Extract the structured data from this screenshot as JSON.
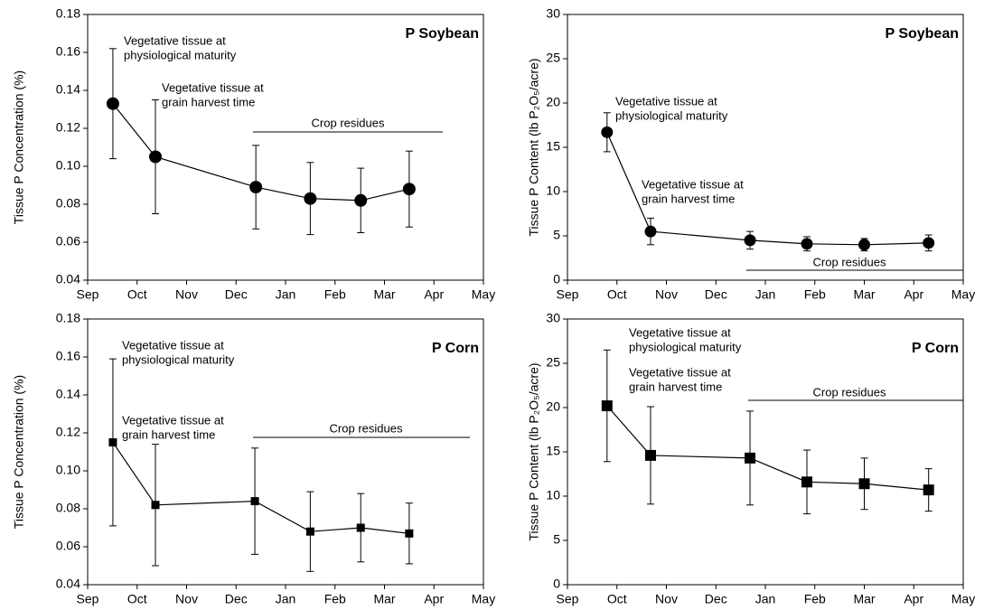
{
  "chart_data": [
    {
      "type": "line",
      "title": "P Soybean",
      "y_label": "Tissue P Concentration (%)",
      "marker": "circle",
      "color": "#000000",
      "x": [
        0.51,
        1.37,
        3.4,
        4.5,
        5.52,
        6.5
      ],
      "values": [
        0.133,
        0.105,
        0.089,
        0.083,
        0.082,
        0.088
      ],
      "errors": [
        0.029,
        0.03,
        0.022,
        0.019,
        0.017,
        0.02
      ],
      "xlim": [
        0,
        8
      ],
      "xticks": [
        {
          "value": 0,
          "label": "Sep"
        },
        {
          "value": 1,
          "label": "Oct"
        },
        {
          "value": 2,
          "label": "Nov"
        },
        {
          "value": 3,
          "label": "Dec"
        },
        {
          "value": 4,
          "label": "Jan"
        },
        {
          "value": 5,
          "label": "Feb"
        },
        {
          "value": 6,
          "label": "Mar"
        },
        {
          "value": 7,
          "label": "Apr"
        },
        {
          "value": 8,
          "label": "May"
        }
      ],
      "ylim": [
        0.04,
        0.18
      ],
      "yticks": [
        0.04,
        0.06,
        0.08,
        {
          "value": 0.1,
          "label": "0.10"
        },
        0.12,
        0.14,
        0.16,
        0.18
      ],
      "annotations": [
        [
          "Vegetative tissue at",
          "physiological maturity"
        ],
        [
          "Vegetative tissue at",
          "grain harvest time"
        ],
        [
          "Crop residues"
        ]
      ]
    },
    {
      "type": "line",
      "title": "P Soybean",
      "y_label": "Tissue P Content (lb P₂O₅/acre)",
      "marker": "circle",
      "color": "#000000",
      "x": [
        0.8,
        1.68,
        3.69,
        4.84,
        6.0,
        7.3
      ],
      "values": [
        16.7,
        5.5,
        4.5,
        4.1,
        4.0,
        4.2
      ],
      "errors": [
        2.2,
        1.5,
        1.0,
        0.8,
        0.7,
        0.9
      ],
      "xlim": [
        0,
        8
      ],
      "xticks": [
        {
          "value": 0,
          "label": "Sep"
        },
        {
          "value": 1,
          "label": "Oct"
        },
        {
          "value": 2,
          "label": "Nov"
        },
        {
          "value": 3,
          "label": "Dec"
        },
        {
          "value": 4,
          "label": "Jan"
        },
        {
          "value": 5,
          "label": "Feb"
        },
        {
          "value": 6,
          "label": "Mar"
        },
        {
          "value": 7,
          "label": "Apr"
        },
        {
          "value": 8,
          "label": "May"
        }
      ],
      "ylim": [
        0,
        30
      ],
      "yticks": [
        0,
        5,
        10,
        15,
        20,
        25,
        30
      ],
      "annotations": [
        [
          "Vegetative tissue at",
          "physiological maturity"
        ],
        [
          "Vegetative tissue at",
          "grain harvest time"
        ],
        [
          "Crop residues"
        ]
      ]
    },
    {
      "type": "line",
      "title": "P Corn",
      "y_label": "Tissue P Concentration (%)",
      "marker": "square",
      "color": "#000000",
      "x": [
        0.51,
        1.37,
        3.38,
        4.5,
        5.52,
        6.5
      ],
      "values": [
        0.115,
        0.082,
        0.084,
        0.068,
        0.07,
        0.067
      ],
      "errors": [
        0.044,
        0.032,
        0.028,
        0.021,
        0.018,
        0.016
      ],
      "xlim": [
        0,
        8
      ],
      "xticks": [
        {
          "value": 0,
          "label": "Sep"
        },
        {
          "value": 1,
          "label": "Oct"
        },
        {
          "value": 2,
          "label": "Nov"
        },
        {
          "value": 3,
          "label": "Dec"
        },
        {
          "value": 4,
          "label": "Jan"
        },
        {
          "value": 5,
          "label": "Feb"
        },
        {
          "value": 6,
          "label": "Mar"
        },
        {
          "value": 7,
          "label": "Apr"
        },
        {
          "value": 8,
          "label": "May"
        }
      ],
      "ylim": [
        0.04,
        0.18
      ],
      "yticks": [
        0.04,
        0.06,
        0.08,
        {
          "value": 0.1,
          "label": "0.10"
        },
        0.12,
        0.14,
        0.16,
        0.18
      ],
      "annotations": [
        [
          "Vegetative tissue at",
          "physiological maturity"
        ],
        [
          "Vegetative tissue at",
          "grain harvest time"
        ],
        [
          "Crop residues"
        ]
      ]
    },
    {
      "type": "line",
      "title": "P Corn",
      "y_label": "Tissue P Content (lb P₂O₅/acre)",
      "marker": "square",
      "color": "#000000",
      "x": [
        0.8,
        1.68,
        3.69,
        4.84,
        6.0,
        7.3
      ],
      "values": [
        20.2,
        14.6,
        14.3,
        11.6,
        11.4,
        10.7
      ],
      "errors": [
        6.3,
        5.5,
        5.3,
        3.6,
        2.9,
        2.4
      ],
      "xlim": [
        0,
        8
      ],
      "xticks": [
        {
          "value": 0,
          "label": "Sep"
        },
        {
          "value": 1,
          "label": "Oct"
        },
        {
          "value": 2,
          "label": "Nov"
        },
        {
          "value": 3,
          "label": "Dec"
        },
        {
          "value": 4,
          "label": "Jan"
        },
        {
          "value": 5,
          "label": "Feb"
        },
        {
          "value": 6,
          "label": "Mar"
        },
        {
          "value": 7,
          "label": "Apr"
        },
        {
          "value": 8,
          "label": "May"
        }
      ],
      "ylim": [
        0,
        30
      ],
      "yticks": [
        0,
        5,
        10,
        15,
        20,
        25,
        30
      ],
      "annotations": [
        [
          "Vegetative tissue at",
          "physiological maturity"
        ],
        [
          "Vegetative tissue at",
          "grain harvest time"
        ],
        [
          "Crop residues"
        ]
      ]
    }
  ]
}
